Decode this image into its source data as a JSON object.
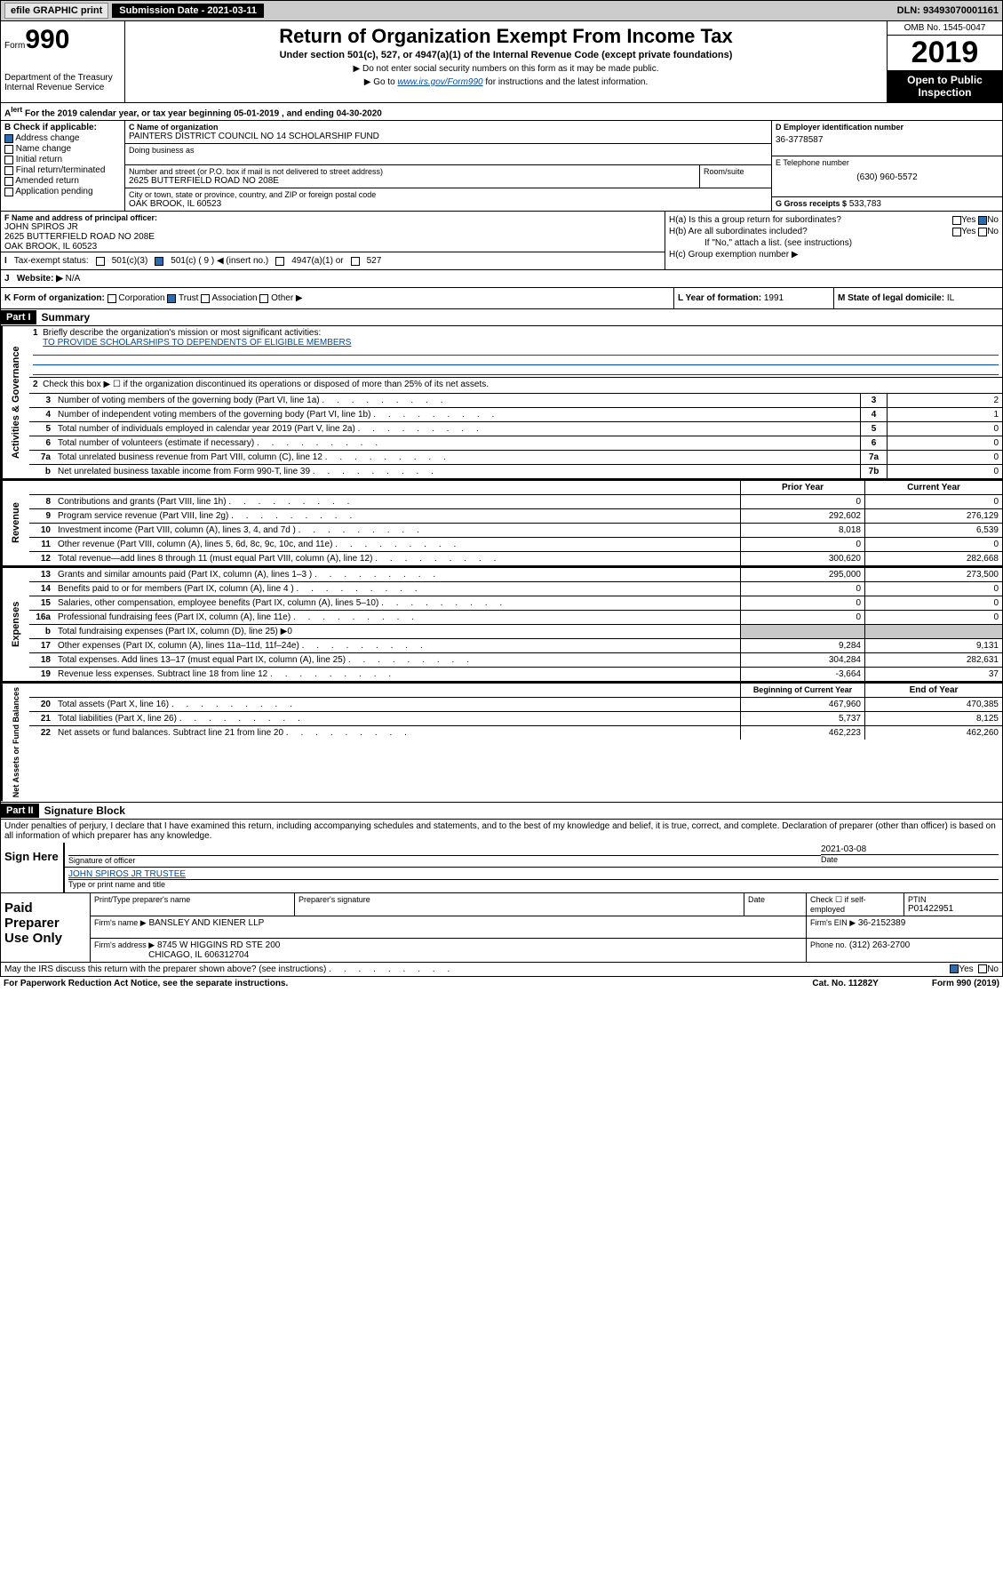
{
  "topbar": {
    "efile": "efile GRAPHIC print",
    "submission": "Submission Date - 2021-03-11",
    "dln": "DLN: 93493070001161"
  },
  "header": {
    "form_label": "Form",
    "form_num": "990",
    "title": "Return of Organization Exempt From Income Tax",
    "subtitle": "Under section 501(c), 527, or 4947(a)(1) of the Internal Revenue Code (except private foundations)",
    "note1": "▶ Do not enter social security numbers on this form as it may be made public.",
    "note2_pre": "▶ Go to ",
    "note2_link": "www.irs.gov/Form990",
    "note2_post": " for instructions and the latest information.",
    "omb": "OMB No. 1545-0047",
    "year": "2019",
    "open_public": "Open to Public Inspection",
    "dept": "Department of the Treasury Internal Revenue Service"
  },
  "year_range": "For the 2019 calendar year, or tax year beginning 05-01-2019   , and ending 04-30-2020",
  "section_b": {
    "label": "B Check if applicable:",
    "items": [
      "Address change",
      "Name change",
      "Initial return",
      "Final return/terminated",
      "Amended return",
      "Application pending"
    ],
    "checked": [
      true,
      false,
      false,
      false,
      false,
      false
    ]
  },
  "section_c": {
    "label": "C Name of organization",
    "org_name": "PAINTERS DISTRICT COUNCIL NO 14 SCHOLARSHIP FUND",
    "dba_label": "Doing business as",
    "addr_label": "Number and street (or P.O. box if mail is not delivered to street address)",
    "room_label": "Room/suite",
    "street": "2625 BUTTERFIELD ROAD NO 208E",
    "city_label": "City or town, state or province, country, and ZIP or foreign postal code",
    "city": "OAK BROOK, IL  60523"
  },
  "section_d": {
    "label": "D Employer identification number",
    "ein": "36-3778587",
    "tel_label": "E Telephone number",
    "tel": "(630) 960-5572",
    "gross_label": "G Gross receipts $",
    "gross": "533,783"
  },
  "section_f": {
    "label": "F Name and address of principal officer:",
    "name": "JOHN SPIROS JR",
    "addr1": "2625 BUTTERFIELD ROAD NO 208E",
    "addr2": "OAK BROOK, IL  60523"
  },
  "section_h": {
    "ha": "H(a)  Is this a group return for subordinates?",
    "hb": "H(b)  Are all subordinates included?",
    "hb_note": "If \"No,\" attach a list. (see instructions)",
    "hc": "H(c)  Group exemption number ▶"
  },
  "tax_status": {
    "label": "Tax-exempt status:",
    "opts": [
      "501(c)(3)",
      "501(c) ( 9 ) ◀ (insert no.)",
      "4947(a)(1) or",
      "527"
    ]
  },
  "website": {
    "label": "Website: ▶",
    "value": "N/A"
  },
  "section_k": {
    "label": "K Form of organization:",
    "opts": [
      "Corporation",
      "Trust",
      "Association",
      "Other ▶"
    ],
    "year_label": "L Year of formation:",
    "year": "1991",
    "state_label": "M State of legal domicile:",
    "state": "IL"
  },
  "part1": {
    "header": "Part I",
    "title": "Summary",
    "line1_label": "Briefly describe the organization's mission or most significant activities:",
    "line1_text": "TO PROVIDE SCHOLARSHIPS TO DEPENDENTS OF ELIGIBLE MEMBERS",
    "line2": "Check this box ▶ ☐ if the organization discontinued its operations or disposed of more than 25% of its net assets.",
    "governance_rows": [
      {
        "num": "3",
        "label": "Number of voting members of the governing body (Part VI, line 1a)",
        "box": "3",
        "val": "2"
      },
      {
        "num": "4",
        "label": "Number of independent voting members of the governing body (Part VI, line 1b)",
        "box": "4",
        "val": "1"
      },
      {
        "num": "5",
        "label": "Total number of individuals employed in calendar year 2019 (Part V, line 2a)",
        "box": "5",
        "val": "0"
      },
      {
        "num": "6",
        "label": "Total number of volunteers (estimate if necessary)",
        "box": "6",
        "val": "0"
      },
      {
        "num": "7a",
        "label": "Total unrelated business revenue from Part VIII, column (C), line 12",
        "box": "7a",
        "val": "0"
      },
      {
        "num": "b",
        "label": "Net unrelated business taxable income from Form 990-T, line 39",
        "box": "7b",
        "val": "0"
      }
    ],
    "col_headers": {
      "prior": "Prior Year",
      "current": "Current Year"
    },
    "revenue_rows": [
      {
        "num": "8",
        "label": "Contributions and grants (Part VIII, line 1h)",
        "prior": "0",
        "current": "0"
      },
      {
        "num": "9",
        "label": "Program service revenue (Part VIII, line 2g)",
        "prior": "292,602",
        "current": "276,129"
      },
      {
        "num": "10",
        "label": "Investment income (Part VIII, column (A), lines 3, 4, and 7d )",
        "prior": "8,018",
        "current": "6,539"
      },
      {
        "num": "11",
        "label": "Other revenue (Part VIII, column (A), lines 5, 6d, 8c, 9c, 10c, and 11e)",
        "prior": "0",
        "current": "0"
      },
      {
        "num": "12",
        "label": "Total revenue—add lines 8 through 11 (must equal Part VIII, column (A), line 12)",
        "prior": "300,620",
        "current": "282,668"
      }
    ],
    "expense_rows": [
      {
        "num": "13",
        "label": "Grants and similar amounts paid (Part IX, column (A), lines 1–3 )",
        "prior": "295,000",
        "current": "273,500"
      },
      {
        "num": "14",
        "label": "Benefits paid to or for members (Part IX, column (A), line 4 )",
        "prior": "0",
        "current": "0"
      },
      {
        "num": "15",
        "label": "Salaries, other compensation, employee benefits (Part IX, column (A), lines 5–10)",
        "prior": "0",
        "current": "0"
      },
      {
        "num": "16a",
        "label": "Professional fundraising fees (Part IX, column (A), line 11e)",
        "prior": "0",
        "current": "0"
      },
      {
        "num": "b",
        "label": "Total fundraising expenses (Part IX, column (D), line 25) ▶0",
        "prior": "",
        "current": "",
        "shaded": true
      },
      {
        "num": "17",
        "label": "Other expenses (Part IX, column (A), lines 11a–11d, 11f–24e)",
        "prior": "9,284",
        "current": "9,131"
      },
      {
        "num": "18",
        "label": "Total expenses. Add lines 13–17 (must equal Part IX, column (A), line 25)",
        "prior": "304,284",
        "current": "282,631"
      },
      {
        "num": "19",
        "label": "Revenue less expenses. Subtract line 18 from line 12",
        "prior": "-3,664",
        "current": "37"
      }
    ],
    "net_headers": {
      "prior": "Beginning of Current Year",
      "current": "End of Year"
    },
    "net_rows": [
      {
        "num": "20",
        "label": "Total assets (Part X, line 16)",
        "prior": "467,960",
        "current": "470,385"
      },
      {
        "num": "21",
        "label": "Total liabilities (Part X, line 26)",
        "prior": "5,737",
        "current": "8,125"
      },
      {
        "num": "22",
        "label": "Net assets or fund balances. Subtract line 21 from line 20",
        "prior": "462,223",
        "current": "462,260"
      }
    ]
  },
  "part2": {
    "header": "Part II",
    "title": "Signature Block",
    "perjury": "Under penalties of perjury, I declare that I have examined this return, including accompanying schedules and statements, and to the best of my knowledge and belief, it is true, correct, and complete. Declaration of preparer (other than officer) is based on all information of which preparer has any knowledge.",
    "sign_here": "Sign Here",
    "sig_officer": "Signature of officer",
    "sig_date": "2021-03-08",
    "date_label": "Date",
    "officer_name": "JOHN SPIROS JR TRUSTEE",
    "name_label": "Type or print name and title",
    "paid": "Paid Preparer Use Only",
    "prep_name_label": "Print/Type preparer's name",
    "prep_sig_label": "Preparer's signature",
    "prep_date_label": "Date",
    "check_self": "Check ☐ if self-employed",
    "ptin_label": "PTIN",
    "ptin": "P01422951",
    "firm_name_label": "Firm's name      ▶",
    "firm_name": "BANSLEY AND KIENER LLP",
    "firm_ein_label": "Firm's EIN ▶",
    "firm_ein": "36-2152389",
    "firm_addr_label": "Firm's address ▶",
    "firm_addr1": "8745 W HIGGINS RD STE 200",
    "firm_addr2": "CHICAGO, IL  606312704",
    "phone_label": "Phone no.",
    "phone": "(312) 263-2700"
  },
  "discuss": "May the IRS discuss this return with the preparer shown above? (see instructions)",
  "footer": {
    "left": "For Paperwork Reduction Act Notice, see the separate instructions.",
    "mid": "Cat. No. 11282Y",
    "right": "Form 990 (2019)"
  },
  "colors": {
    "bg_shaded": "#c8c8c8",
    "link": "#004b9b",
    "check": "#2b6cb0"
  }
}
